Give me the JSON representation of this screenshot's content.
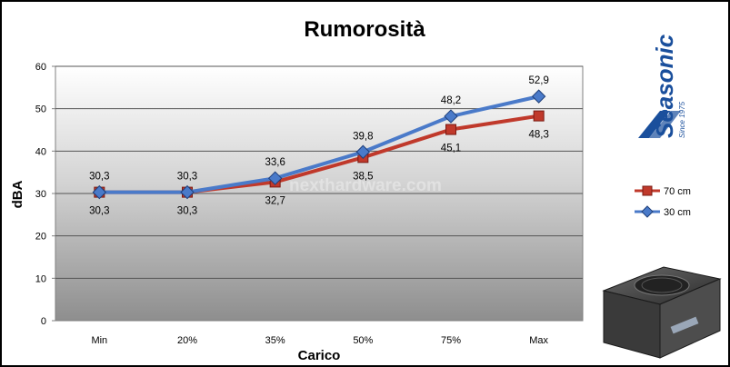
{
  "chart_data": {
    "type": "line",
    "title": "Rumorosità",
    "xlabel": "Carico",
    "ylabel": "dBA",
    "categories": [
      "Min",
      "20%",
      "35%",
      "50%",
      "75%",
      "Max"
    ],
    "ylim": [
      0,
      60
    ],
    "yticks": [
      "0",
      "10",
      "20",
      "30",
      "40",
      "50",
      "60"
    ],
    "grid": true,
    "legend_position": "right",
    "series": [
      {
        "name": "70 cm",
        "values": [
          30.3,
          30.3,
          32.7,
          38.5,
          45.1,
          48.3
        ],
        "labels": [
          "30,3",
          "30,3",
          "32,7",
          "38,5",
          "45,1",
          "48,3"
        ],
        "color": "#c0392b",
        "marker": "square"
      },
      {
        "name": "30 cm",
        "values": [
          30.3,
          30.3,
          33.6,
          39.8,
          48.2,
          52.9
        ],
        "labels": [
          "30,3",
          "30,3",
          "33,6",
          "39,8",
          "48,2",
          "52,9"
        ],
        "color": "#4a7ac9",
        "marker": "diamond"
      }
    ]
  },
  "branding": {
    "logo_text": "Seasonic",
    "logo_subtitle": "Since 1975",
    "watermark": "nexthardware.com"
  }
}
